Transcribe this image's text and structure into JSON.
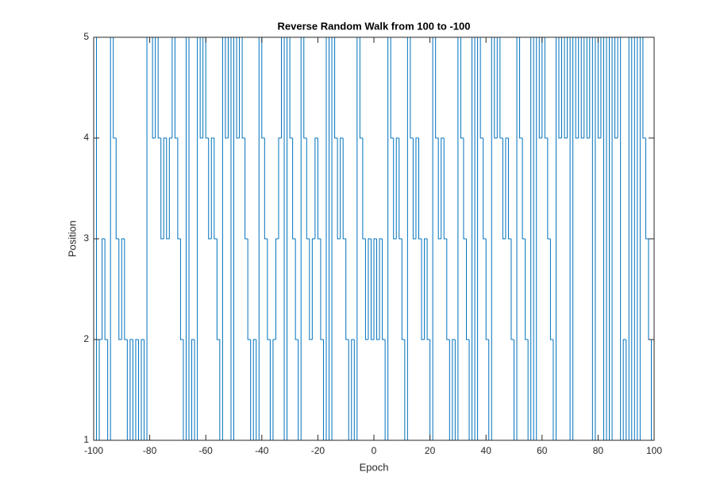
{
  "chart_data": {
    "type": "stairs",
    "title": "Reverse Random Walk from 100 to -100",
    "x_label": "Epoch",
    "y_label": "Position",
    "x": [
      -100,
      -99,
      -98,
      -97,
      -96,
      -95,
      -94,
      -93,
      -92,
      -91,
      -90,
      -89,
      -88,
      -87,
      -86,
      -85,
      -84,
      -83,
      -82,
      -81,
      -80,
      -79,
      -78,
      -77,
      -76,
      -75,
      -74,
      -73,
      -72,
      -71,
      -70,
      -69,
      -68,
      -67,
      -66,
      -65,
      -64,
      -63,
      -62,
      -61,
      -60,
      -59,
      -58,
      -57,
      -56,
      -55,
      -54,
      -53,
      -52,
      -51,
      -50,
      -49,
      -48,
      -47,
      -46,
      -45,
      -44,
      -43,
      -42,
      -41,
      -40,
      -39,
      -38,
      -37,
      -36,
      -35,
      -34,
      -33,
      -32,
      -31,
      -30,
      -29,
      -28,
      -27,
      -26,
      -25,
      -24,
      -23,
      -22,
      -21,
      -20,
      -19,
      -18,
      -17,
      -16,
      -15,
      -14,
      -13,
      -12,
      -11,
      -10,
      -9,
      -8,
      -7,
      -6,
      -5,
      -4,
      -3,
      -2,
      -1,
      0,
      1,
      2,
      3,
      4,
      5,
      6,
      7,
      8,
      9,
      10,
      11,
      12,
      13,
      14,
      15,
      16,
      17,
      18,
      19,
      20,
      21,
      22,
      23,
      24,
      25,
      26,
      27,
      28,
      29,
      30,
      31,
      32,
      33,
      34,
      35,
      36,
      37,
      38,
      39,
      40,
      41,
      42,
      43,
      44,
      45,
      46,
      47,
      48,
      49,
      50,
      51,
      52,
      53,
      54,
      55,
      56,
      57,
      58,
      59,
      60,
      61,
      62,
      63,
      64,
      65,
      66,
      67,
      68,
      69,
      70,
      71,
      72,
      73,
      74,
      75,
      76,
      77,
      78,
      79,
      80,
      81,
      82,
      83,
      84,
      85,
      86,
      87,
      88,
      89,
      90,
      91,
      92,
      93,
      94,
      95,
      96,
      97,
      98,
      99,
      100
    ],
    "series": [
      {
        "color": "#0072bd",
        "values": [
          5,
          1,
          2,
          3,
          2,
          1,
          5,
          4,
          3,
          2,
          3,
          2,
          1,
          2,
          1,
          2,
          1,
          2,
          1,
          5,
          5,
          4,
          5,
          4,
          3,
          4,
          3,
          4,
          5,
          4,
          3,
          2,
          1,
          5,
          1,
          2,
          1,
          5,
          4,
          5,
          4,
          3,
          4,
          3,
          2,
          1,
          5,
          4,
          5,
          1,
          5,
          4,
          5,
          4,
          3,
          2,
          1,
          2,
          1,
          5,
          4,
          3,
          2,
          1,
          2,
          3,
          4,
          5,
          1,
          5,
          4,
          3,
          2,
          1,
          5,
          4,
          3,
          2,
          3,
          4,
          3,
          2,
          1,
          5,
          1,
          5,
          4,
          3,
          4,
          3,
          2,
          1,
          2,
          1,
          5,
          4,
          3,
          2,
          3,
          2,
          3,
          2,
          3,
          2,
          1,
          5,
          4,
          3,
          4,
          3,
          2,
          1,
          5,
          4,
          3,
          4,
          3,
          2,
          3,
          2,
          1,
          5,
          4,
          3,
          4,
          3,
          2,
          1,
          2,
          1,
          5,
          4,
          3,
          2,
          1,
          5,
          1,
          5,
          4,
          3,
          2,
          1,
          5,
          4,
          5,
          4,
          3,
          4,
          3,
          2,
          1,
          5,
          4,
          3,
          2,
          1,
          5,
          1,
          5,
          4,
          5,
          4,
          3,
          2,
          1,
          5,
          4,
          5,
          4,
          5,
          1,
          5,
          4,
          5,
          4,
          5,
          4,
          5,
          1,
          5,
          4,
          5,
          1,
          5,
          1,
          5,
          4,
          5,
          1,
          2,
          1,
          5,
          1,
          5,
          1,
          5,
          4,
          3,
          2,
          1,
          5
        ]
      }
    ],
    "xlim": [
      -100,
      100
    ],
    "ylim": [
      1,
      5
    ],
    "xticks": [
      -100,
      -80,
      -60,
      -40,
      -20,
      0,
      20,
      40,
      60,
      80,
      100
    ],
    "yticks": [
      1,
      2,
      3,
      4,
      5
    ]
  }
}
